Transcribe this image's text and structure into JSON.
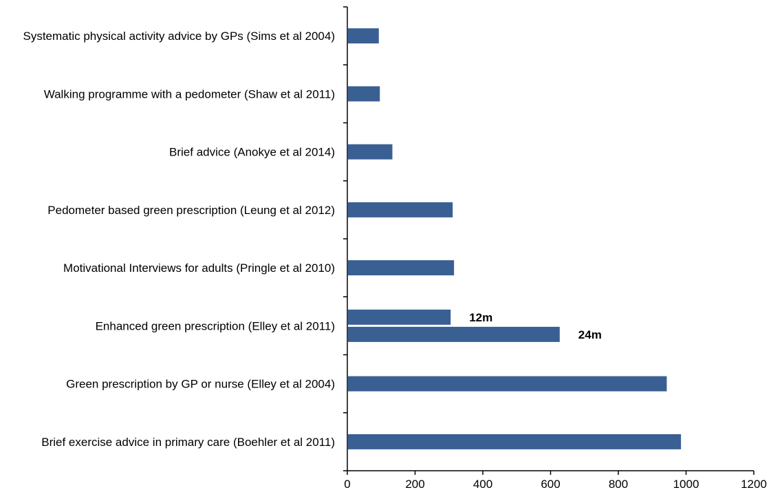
{
  "chart_data": {
    "type": "bar",
    "orientation": "horizontal",
    "title": "",
    "xlabel": "",
    "ylabel": "",
    "xlim": [
      0,
      1200
    ],
    "x_ticks": [
      0,
      200,
      400,
      600,
      800,
      1000,
      1200
    ],
    "grid": false,
    "bar_color": "#3A5F93",
    "categories": [
      "Systematic physical activity advice by GPs (Sims et al 2004)",
      "Walking programme with a pedometer (Shaw et al 2011)",
      "Brief advice (Anokye et al 2014)",
      "Pedometer based green prescription (Leung et al 2012)",
      "Motivational Interviews for adults (Pringle et al 2010)",
      "Enhanced green prescription (Elley et al 2011)",
      "Green prescription by GP or nurse (Elley et al 2004)",
      "Brief exercise advice in primary care (Boehler et al 2011)"
    ],
    "bars": [
      [
        {
          "value": 93,
          "label": ""
        }
      ],
      [
        {
          "value": 96,
          "label": ""
        }
      ],
      [
        {
          "value": 133,
          "label": ""
        }
      ],
      [
        {
          "value": 311,
          "label": ""
        }
      ],
      [
        {
          "value": 315,
          "label": ""
        }
      ],
      [
        {
          "value": 305,
          "label": "12m"
        },
        {
          "value": 627,
          "label": "24m"
        }
      ],
      [
        {
          "value": 943,
          "label": ""
        }
      ],
      [
        {
          "value": 985,
          "label": ""
        }
      ]
    ]
  }
}
